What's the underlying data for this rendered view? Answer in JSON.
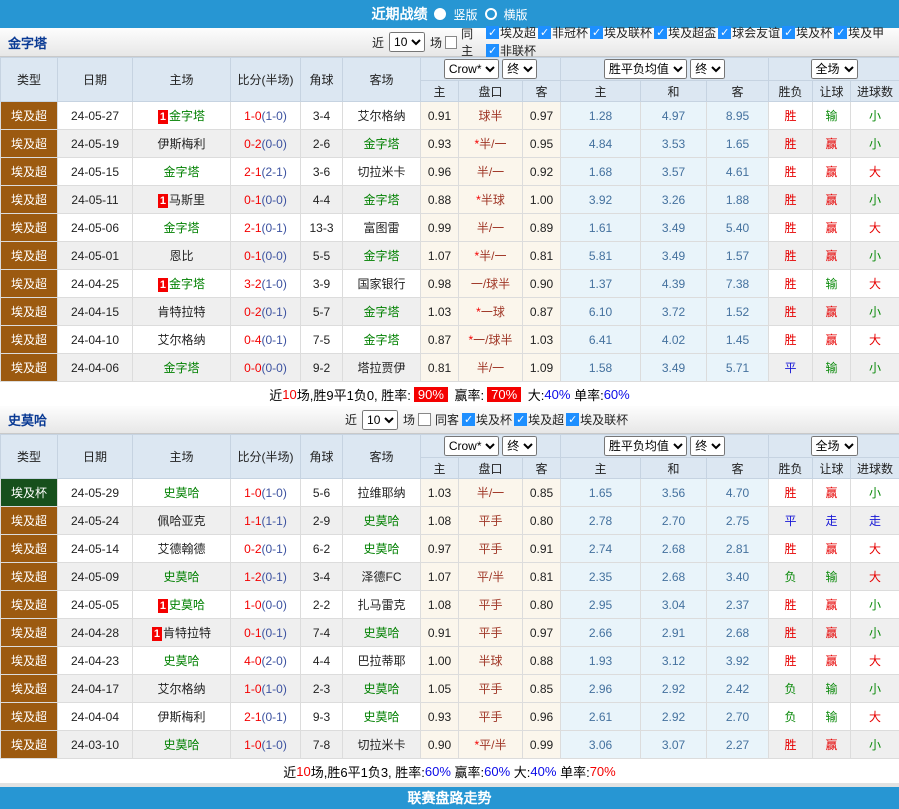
{
  "top_bar": {
    "title": "近期战绩",
    "views": [
      {
        "label": "竖版",
        "selected": true
      },
      {
        "label": "横版",
        "selected": false
      }
    ]
  },
  "selects": {
    "company": "Crow*",
    "final": "终",
    "avg": "胜平负均值",
    "avg_final": "终",
    "scope": "全场"
  },
  "table_header": {
    "type": "类型",
    "date": "日期",
    "home": "主场",
    "score": "比分(半场)",
    "corner": "角球",
    "away": "客场",
    "h": "主",
    "handicap": "盘口",
    "a": "客",
    "avg_h": "主",
    "avg_d": "和",
    "avg_a": "客",
    "result": "胜负",
    "let": "让球",
    "goals": "进球数"
  },
  "sections": [
    {
      "team": "金字塔",
      "filter": {
        "near": "近",
        "count": "10",
        "matches": "场",
        "same": "同主",
        "same_checked": false,
        "leagues": [
          {
            "label": "埃及超",
            "checked": true
          },
          {
            "label": "非冠杯",
            "checked": true
          },
          {
            "label": "埃及联杯",
            "checked": true
          },
          {
            "label": "埃及超盃",
            "checked": true
          },
          {
            "label": "球会友谊",
            "checked": true
          },
          {
            "label": "埃及杯",
            "checked": true
          },
          {
            "label": "埃及甲",
            "checked": true
          },
          {
            "label": "非联杯",
            "checked": true
          }
        ]
      },
      "rows": [
        {
          "league": "埃及超",
          "cup": false,
          "date": "24-05-27",
          "badge": "1",
          "home": "金字塔",
          "home_green": true,
          "score": "1-0",
          "half": "(1-0)",
          "corner": "3-4",
          "away": "艾尔格纳",
          "away_green": false,
          "odds_home": "0.91",
          "star": false,
          "handicap": "球半",
          "odds_away": "0.97",
          "avg_home": "1.28",
          "avg_draw": "4.97",
          "avg_away": "8.95",
          "result": "胜",
          "let": "输",
          "goals": "小"
        },
        {
          "league": "埃及超",
          "cup": false,
          "date": "24-05-19",
          "badge": "",
          "home": "伊斯梅利",
          "home_green": false,
          "score": "0-2",
          "half": "(0-0)",
          "corner": "2-6",
          "away": "金字塔",
          "away_green": true,
          "odds_home": "0.93",
          "star": true,
          "handicap": "半/一",
          "odds_away": "0.95",
          "avg_home": "4.84",
          "avg_draw": "3.53",
          "avg_away": "1.65",
          "result": "胜",
          "let": "赢",
          "goals": "小"
        },
        {
          "league": "埃及超",
          "cup": false,
          "date": "24-05-15",
          "badge": "",
          "home": "金字塔",
          "home_green": true,
          "score": "2-1",
          "half": "(2-1)",
          "corner": "3-6",
          "away": "切拉米卡",
          "away_green": false,
          "odds_home": "0.96",
          "star": false,
          "handicap": "半/一",
          "odds_away": "0.92",
          "avg_home": "1.68",
          "avg_draw": "3.57",
          "avg_away": "4.61",
          "result": "胜",
          "let": "赢",
          "goals": "大"
        },
        {
          "league": "埃及超",
          "cup": false,
          "date": "24-05-11",
          "badge": "1",
          "home": "马斯里",
          "home_green": false,
          "score": "0-1",
          "half": "(0-0)",
          "corner": "4-4",
          "away": "金字塔",
          "away_green": true,
          "odds_home": "0.88",
          "star": true,
          "handicap": "半球",
          "odds_away": "1.00",
          "avg_home": "3.92",
          "avg_draw": "3.26",
          "avg_away": "1.88",
          "result": "胜",
          "let": "赢",
          "goals": "小"
        },
        {
          "league": "埃及超",
          "cup": false,
          "date": "24-05-06",
          "badge": "",
          "home": "金字塔",
          "home_green": true,
          "score": "2-1",
          "half": "(0-1)",
          "corner": "13-3",
          "away": "富图雷",
          "away_green": false,
          "odds_home": "0.99",
          "star": false,
          "handicap": "半/一",
          "odds_away": "0.89",
          "avg_home": "1.61",
          "avg_draw": "3.49",
          "avg_away": "5.40",
          "result": "胜",
          "let": "赢",
          "goals": "大"
        },
        {
          "league": "埃及超",
          "cup": false,
          "date": "24-05-01",
          "badge": "",
          "home": "恩比",
          "home_green": false,
          "score": "0-1",
          "half": "(0-0)",
          "corner": "5-5",
          "away": "金字塔",
          "away_green": true,
          "odds_home": "1.07",
          "star": true,
          "handicap": "半/一",
          "odds_away": "0.81",
          "avg_home": "5.81",
          "avg_draw": "3.49",
          "avg_away": "1.57",
          "result": "胜",
          "let": "赢",
          "goals": "小"
        },
        {
          "league": "埃及超",
          "cup": false,
          "date": "24-04-25",
          "badge": "1",
          "home": "金字塔",
          "home_green": true,
          "score": "3-2",
          "half": "(1-0)",
          "corner": "3-9",
          "away": "国家银行",
          "away_green": false,
          "odds_home": "0.98",
          "star": false,
          "handicap": "一/球半",
          "odds_away": "0.90",
          "avg_home": "1.37",
          "avg_draw": "4.39",
          "avg_away": "7.38",
          "result": "胜",
          "let": "输",
          "goals": "大"
        },
        {
          "league": "埃及超",
          "cup": false,
          "date": "24-04-15",
          "badge": "",
          "home": "肯特拉特",
          "home_green": false,
          "score": "0-2",
          "half": "(0-1)",
          "corner": "5-7",
          "away": "金字塔",
          "away_green": true,
          "odds_home": "1.03",
          "star": true,
          "handicap": "一球",
          "odds_away": "0.87",
          "avg_home": "6.10",
          "avg_draw": "3.72",
          "avg_away": "1.52",
          "result": "胜",
          "let": "赢",
          "goals": "小"
        },
        {
          "league": "埃及超",
          "cup": false,
          "date": "24-04-10",
          "badge": "",
          "home": "艾尔格纳",
          "home_green": false,
          "score": "0-4",
          "half": "(0-1)",
          "corner": "7-5",
          "away": "金字塔",
          "away_green": true,
          "odds_home": "0.87",
          "star": true,
          "handicap": "一/球半",
          "odds_away": "1.03",
          "avg_home": "6.41",
          "avg_draw": "4.02",
          "avg_away": "1.45",
          "result": "胜",
          "let": "赢",
          "goals": "大"
        },
        {
          "league": "埃及超",
          "cup": false,
          "date": "24-04-06",
          "badge": "",
          "home": "金字塔",
          "home_green": true,
          "score": "0-0",
          "half": "(0-0)",
          "corner": "9-2",
          "away": "塔拉贾伊",
          "away_green": false,
          "odds_home": "0.81",
          "star": false,
          "handicap": "半/一",
          "odds_away": "1.09",
          "avg_home": "1.58",
          "avg_draw": "3.49",
          "avg_away": "5.71",
          "result": "平",
          "let": "输",
          "goals": "小"
        }
      ],
      "summary": {
        "parts": [
          {
            "t": "近",
            "c": "k"
          },
          {
            "t": "10",
            "c": "r"
          },
          {
            "t": "场,胜9平1负0, 胜率:",
            "c": "k"
          },
          {
            "t": "90%",
            "c": "hl"
          },
          {
            "t": " 赢率:",
            "c": "k"
          },
          {
            "t": "70%",
            "c": "hl"
          },
          {
            "t": " 大:",
            "c": "k"
          },
          {
            "t": "40%",
            "c": "b"
          },
          {
            "t": " 单率:",
            "c": "k"
          },
          {
            "t": "60%",
            "c": "b"
          }
        ]
      }
    },
    {
      "team": "史莫哈",
      "filter": {
        "near": "近",
        "count": "10",
        "matches": "场",
        "same": "同客",
        "same_checked": false,
        "leagues": [
          {
            "label": "埃及杯",
            "checked": true
          },
          {
            "label": "埃及超",
            "checked": true
          },
          {
            "label": "埃及联杯",
            "checked": true
          }
        ]
      },
      "rows": [
        {
          "league": "埃及杯",
          "cup": true,
          "date": "24-05-29",
          "badge": "",
          "home": "史莫哈",
          "home_green": true,
          "score": "1-0",
          "half": "(1-0)",
          "corner": "5-6",
          "away": "拉维耶纳",
          "away_green": false,
          "odds_home": "1.03",
          "star": false,
          "handicap": "半/一",
          "odds_away": "0.85",
          "avg_home": "1.65",
          "avg_draw": "3.56",
          "avg_away": "4.70",
          "result": "胜",
          "let": "赢",
          "goals": "小"
        },
        {
          "league": "埃及超",
          "cup": false,
          "date": "24-05-24",
          "badge": "",
          "home": "佩哈亚克",
          "home_green": false,
          "score": "1-1",
          "half": "(1-1)",
          "corner": "2-9",
          "away": "史莫哈",
          "away_green": true,
          "odds_home": "1.08",
          "star": false,
          "handicap": "平手",
          "odds_away": "0.80",
          "avg_home": "2.78",
          "avg_draw": "2.70",
          "avg_away": "2.75",
          "result": "平",
          "let": "走",
          "goals": "走"
        },
        {
          "league": "埃及超",
          "cup": false,
          "date": "24-05-14",
          "badge": "",
          "home": "艾德翰德",
          "home_green": false,
          "score": "0-2",
          "half": "(0-1)",
          "corner": "6-2",
          "away": "史莫哈",
          "away_green": true,
          "odds_home": "0.97",
          "star": false,
          "handicap": "平手",
          "odds_away": "0.91",
          "avg_home": "2.74",
          "avg_draw": "2.68",
          "avg_away": "2.81",
          "result": "胜",
          "let": "赢",
          "goals": "大"
        },
        {
          "league": "埃及超",
          "cup": false,
          "date": "24-05-09",
          "badge": "",
          "home": "史莫哈",
          "home_green": true,
          "score": "1-2",
          "half": "(0-1)",
          "corner": "3-4",
          "away": "泽德FC",
          "away_green": false,
          "odds_home": "1.07",
          "star": false,
          "handicap": "平/半",
          "odds_away": "0.81",
          "avg_home": "2.35",
          "avg_draw": "2.68",
          "avg_away": "3.40",
          "result": "负",
          "let": "输",
          "goals": "大"
        },
        {
          "league": "埃及超",
          "cup": false,
          "date": "24-05-05",
          "badge": "1",
          "home": "史莫哈",
          "home_green": true,
          "score": "1-0",
          "half": "(0-0)",
          "corner": "2-2",
          "away": "扎马雷克",
          "away_green": false,
          "odds_home": "1.08",
          "star": false,
          "handicap": "平手",
          "odds_away": "0.80",
          "avg_home": "2.95",
          "avg_draw": "3.04",
          "avg_away": "2.37",
          "result": "胜",
          "let": "赢",
          "goals": "小"
        },
        {
          "league": "埃及超",
          "cup": false,
          "date": "24-04-28",
          "badge": "1",
          "home": "肯特拉特",
          "home_green": false,
          "score": "0-1",
          "half": "(0-1)",
          "corner": "7-4",
          "away": "史莫哈",
          "away_green": true,
          "odds_home": "0.91",
          "star": false,
          "handicap": "平手",
          "odds_away": "0.97",
          "avg_home": "2.66",
          "avg_draw": "2.91",
          "avg_away": "2.68",
          "result": "胜",
          "let": "赢",
          "goals": "小"
        },
        {
          "league": "埃及超",
          "cup": false,
          "date": "24-04-23",
          "badge": "",
          "home": "史莫哈",
          "home_green": true,
          "score": "4-0",
          "half": "(2-0)",
          "corner": "4-4",
          "away": "巴拉蒂耶",
          "away_green": false,
          "odds_home": "1.00",
          "star": false,
          "handicap": "半球",
          "odds_away": "0.88",
          "avg_home": "1.93",
          "avg_draw": "3.12",
          "avg_away": "3.92",
          "result": "胜",
          "let": "赢",
          "goals": "大"
        },
        {
          "league": "埃及超",
          "cup": false,
          "date": "24-04-17",
          "badge": "",
          "home": "艾尔格纳",
          "home_green": false,
          "score": "1-0",
          "half": "(1-0)",
          "corner": "2-3",
          "away": "史莫哈",
          "away_green": true,
          "odds_home": "1.05",
          "star": false,
          "handicap": "平手",
          "odds_away": "0.85",
          "avg_home": "2.96",
          "avg_draw": "2.92",
          "avg_away": "2.42",
          "result": "负",
          "let": "输",
          "goals": "小"
        },
        {
          "league": "埃及超",
          "cup": false,
          "date": "24-04-04",
          "badge": "",
          "home": "伊斯梅利",
          "home_green": false,
          "score": "2-1",
          "half": "(0-1)",
          "corner": "9-3",
          "away": "史莫哈",
          "away_green": true,
          "odds_home": "0.93",
          "star": false,
          "handicap": "平手",
          "odds_away": "0.96",
          "avg_home": "2.61",
          "avg_draw": "2.92",
          "avg_away": "2.70",
          "result": "负",
          "let": "输",
          "goals": "大"
        },
        {
          "league": "埃及超",
          "cup": false,
          "date": "24-03-10",
          "badge": "",
          "home": "史莫哈",
          "home_green": true,
          "score": "1-0",
          "half": "(1-0)",
          "corner": "7-8",
          "away": "切拉米卡",
          "away_green": false,
          "odds_home": "0.90",
          "star": true,
          "handicap": "平/半",
          "odds_away": "0.99",
          "avg_home": "3.06",
          "avg_draw": "3.07",
          "avg_away": "2.27",
          "result": "胜",
          "let": "赢",
          "goals": "小"
        }
      ],
      "summary": {
        "parts": [
          {
            "t": "近",
            "c": "k"
          },
          {
            "t": "10",
            "c": "r"
          },
          {
            "t": "场,胜6平1负3, 胜率:",
            "c": "k"
          },
          {
            "t": "60%",
            "c": "b"
          },
          {
            "t": " 赢率:",
            "c": "k"
          },
          {
            "t": "60%",
            "c": "b"
          },
          {
            "t": " 大:",
            "c": "k"
          },
          {
            "t": "40%",
            "c": "b"
          },
          {
            "t": " 单率:",
            "c": "k"
          },
          {
            "t": "70%",
            "c": "r"
          }
        ]
      }
    }
  ],
  "footer": {
    "title": "联赛盘路走势"
  }
}
